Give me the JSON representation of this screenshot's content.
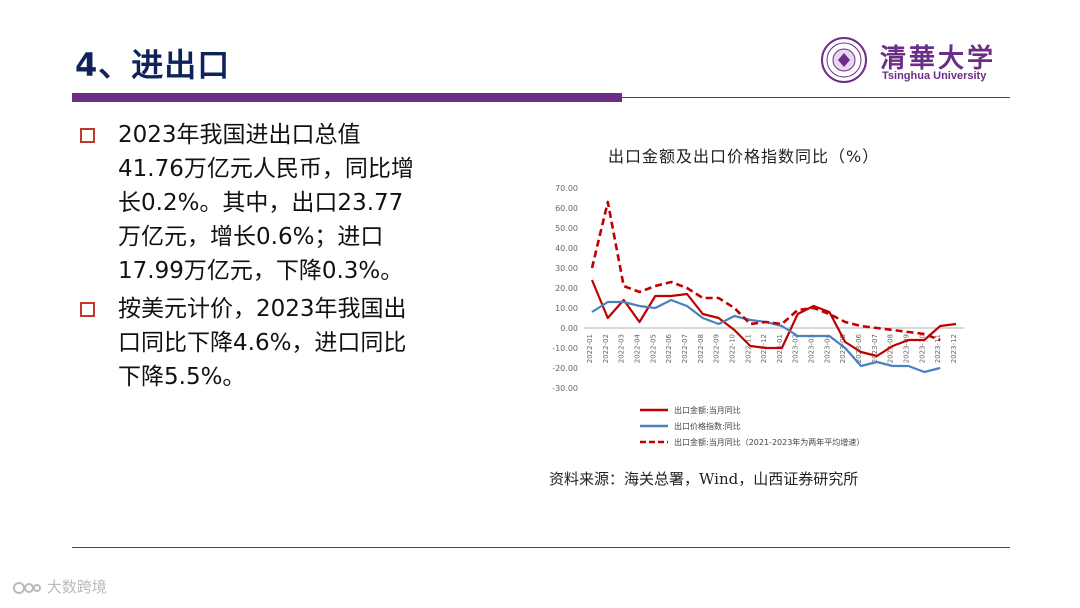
{
  "header": {
    "title": "4、进出口",
    "logo_cn": "清華大学",
    "logo_en": "Tsinghua University"
  },
  "bullets": [
    "2023年我国进出口总值41.76万亿元人民币，同比增长0.2%。其中，出口23.77万亿元，增长0.6%；进口17.99万亿元，下降0.3%。",
    "按美元计价，2023年我国出口同比下降4.6%，进口同比下降5.5%。"
  ],
  "chart_title": "出口金额及出口价格指数同比（%）",
  "source": "资料来源：海关总署，Wind，山西证券研究所",
  "watermark": "大数跨境",
  "colors": {
    "accent": "#6b2d86",
    "title": "#10225a",
    "bullet_box": "#c0392b",
    "series_red": "#c00000",
    "series_blue": "#4a7fc1"
  },
  "chart_data": {
    "type": "line",
    "title": "出口金额及出口价格指数同比（%）",
    "x": [
      "2022-01",
      "2022-02",
      "2022-03",
      "2022-04",
      "2022-05",
      "2022-06",
      "2022-07",
      "2022-08",
      "2022-09",
      "2022-10",
      "2022-11",
      "2022-12",
      "2023-01",
      "2023-02",
      "2023-03",
      "2023-04",
      "2023-05",
      "2023-06",
      "2023-07",
      "2023-08",
      "2023-09",
      "2023-10",
      "2023-11",
      "2023-12"
    ],
    "x_tick_labels": [
      "2022-01",
      "2022-02",
      "2022-03",
      "2022-04",
      "2022-05",
      "2022-06",
      "2022-07",
      "2022-08",
      "2022-09",
      "2022-10",
      "2022-11",
      "2022-12",
      "2023-01",
      "2023-02",
      "2023-03",
      "2023-04",
      "2023-05",
      "2023-06",
      "2023-07",
      "2023-08",
      "2023-09",
      "2023-10",
      "2023-11",
      "2023-12"
    ],
    "y_ticks": [
      "70.00",
      "60.00",
      "50.00",
      "40.00",
      "30.00",
      "20.00",
      "10.00",
      "0.00",
      "-10.00",
      "-20.00",
      "-30.00"
    ],
    "ylim": [
      -30,
      70
    ],
    "series": [
      {
        "name": "出口金额:当月同比",
        "style": "solid",
        "color": "#c00000",
        "values": [
          24,
          5,
          14,
          3,
          16,
          16,
          17,
          7,
          5,
          -1,
          -9,
          -10,
          -10,
          7,
          11,
          8,
          -7,
          -12,
          -14,
          -9,
          -6,
          -6,
          1,
          2
        ]
      },
      {
        "name": "出口价格指数:同比",
        "style": "solid",
        "color": "#4a7fc1",
        "values": [
          8,
          13,
          13,
          11,
          10,
          14,
          11,
          5,
          2,
          6,
          4,
          3,
          1,
          -4,
          -4,
          -4,
          -10,
          -19,
          -17,
          -19,
          -19,
          -22,
          -20,
          null
        ]
      },
      {
        "name": "出口金额:当月同比（2021-2023年为两年平均增速）",
        "style": "dashed",
        "color": "#c00000",
        "values": [
          30,
          63,
          21,
          18,
          21,
          23,
          20,
          15,
          15,
          10,
          2,
          3,
          2,
          9,
          10,
          7,
          3,
          1,
          0,
          -1,
          -2,
          -3,
          -6,
          null
        ]
      }
    ],
    "legend": [
      "出口金额:当月同比",
      "出口价格指数:同比",
      "出口金额:当月同比（2021-2023年为两年平均增速）"
    ],
    "grid": false,
    "legend_position": "bottom"
  }
}
